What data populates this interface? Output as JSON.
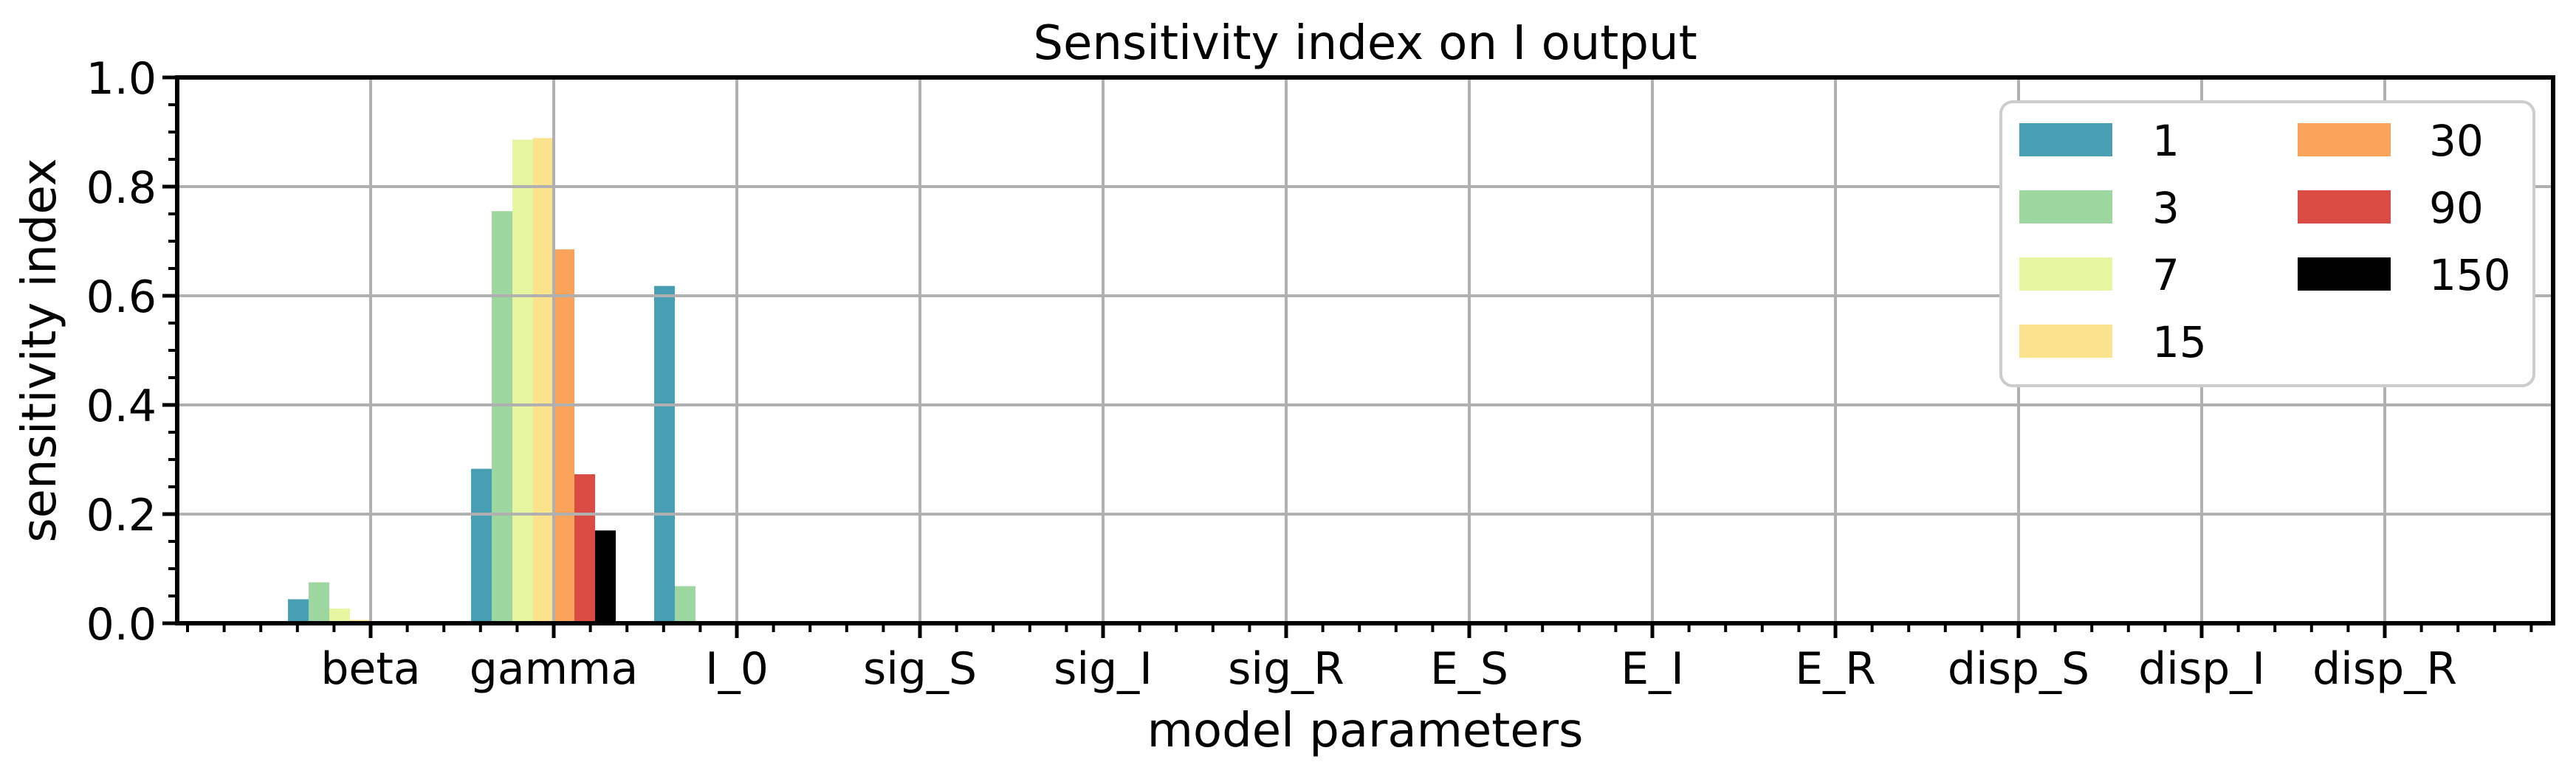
{
  "figure": {
    "title": "Sensitivity index on I output",
    "xlabel": "model parameters",
    "ylabel": "sensitivity index"
  },
  "chart_data": {
    "type": "bar",
    "title": "Sensitivity index on I output",
    "xlabel": "model parameters",
    "ylabel": "sensitivity index",
    "ylim": [
      0.0,
      1.0
    ],
    "yticks": [
      "0.0",
      "0.2",
      "0.4",
      "0.6",
      "0.8",
      "1.0"
    ],
    "grid": true,
    "grid_color": "#b0b0b0",
    "spine_color": "#000000",
    "legend_position": "upper right",
    "legend_columns": 2,
    "legend_border_color": "#cccccc",
    "categories": [
      "beta",
      "gamma",
      "I_0",
      "sig_S",
      "sig_I",
      "sig_R",
      "E_S",
      "E_I",
      "E_R",
      "disp_S",
      "disp_I",
      "disp_R"
    ],
    "series": [
      {
        "name": "1",
        "color": "#489FB4",
        "values": [
          0.044,
          0.283,
          0.618,
          0,
          0,
          0,
          0,
          0,
          0,
          0,
          0,
          0
        ]
      },
      {
        "name": "3",
        "color": "#9ED69F",
        "values": [
          0.075,
          0.755,
          0.068,
          0,
          0,
          0,
          0,
          0,
          0,
          0,
          0,
          0
        ]
      },
      {
        "name": "7",
        "color": "#E5F5A0",
        "values": [
          0.027,
          0.886,
          0,
          0,
          0,
          0,
          0,
          0,
          0,
          0,
          0,
          0
        ]
      },
      {
        "name": "15",
        "color": "#FBE38D",
        "values": [
          0.006,
          0.889,
          0.004,
          0,
          0,
          0,
          0,
          0,
          0,
          0,
          0,
          0
        ]
      },
      {
        "name": "30",
        "color": "#FAA45B",
        "values": [
          0,
          0.685,
          0,
          0,
          0,
          0,
          0,
          0,
          0,
          0,
          0,
          0
        ]
      },
      {
        "name": "90",
        "color": "#DA4B44",
        "values": [
          0,
          0.273,
          0,
          0,
          0,
          0,
          0,
          0,
          0,
          0,
          0,
          0
        ]
      },
      {
        "name": "150",
        "color": "#000000",
        "values": [
          0,
          0.17,
          0,
          0,
          0,
          0,
          0,
          0,
          0,
          0,
          0,
          0
        ]
      }
    ]
  }
}
